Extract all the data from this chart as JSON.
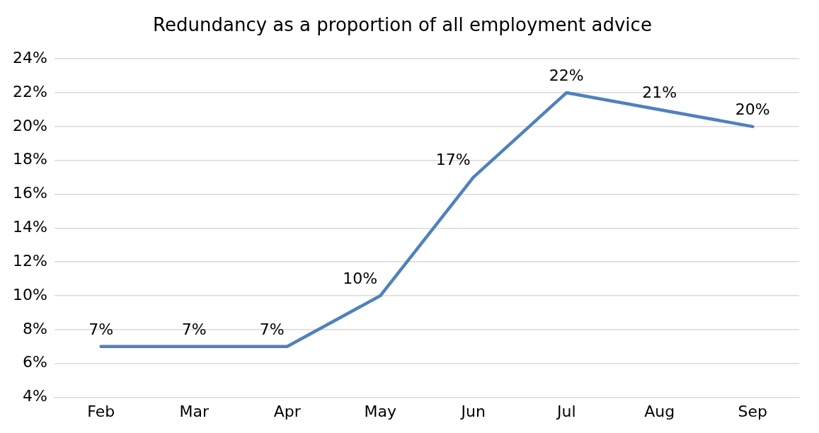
{
  "chart_data": {
    "type": "line",
    "title": "Redundancy as a proportion of all employment advice",
    "categories": [
      "Feb",
      "Mar",
      "Apr",
      "May",
      "Jun",
      "Jul",
      "Aug",
      "Sep"
    ],
    "series": [
      {
        "color": "#4f81bd",
        "values": [
          7,
          7,
          7,
          10,
          17,
          22,
          21,
          20
        ],
        "value_labels": [
          "7%",
          "7%",
          "7%",
          "10%",
          "17%",
          "22%",
          "21%",
          "20%"
        ]
      }
    ],
    "ylim": [
      4,
      24
    ],
    "yticks": [
      {
        "value": 4,
        "label": "4%"
      },
      {
        "value": 6,
        "label": "6%"
      },
      {
        "value": 8,
        "label": "8%"
      },
      {
        "value": 10,
        "label": "10%"
      },
      {
        "value": 12,
        "label": "12%"
      },
      {
        "value": 14,
        "label": "14%"
      },
      {
        "value": 16,
        "label": "16%"
      },
      {
        "value": 18,
        "label": "18%"
      },
      {
        "value": 20,
        "label": "20%"
      },
      {
        "value": 22,
        "label": "22%"
      },
      {
        "value": 24,
        "label": "24%"
      }
    ],
    "grid": "y",
    "legend": false,
    "marker": "none",
    "line_style": "solid"
  }
}
